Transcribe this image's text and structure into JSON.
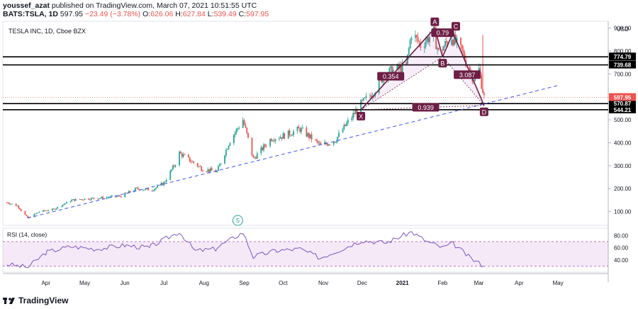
{
  "header": {
    "user": "youssef_azat",
    "published": "published on TradingView.com, March 07, 2021 10:51:55 UTC",
    "symbol": "BATS:TSLA, 1D",
    "last": "597.95",
    "change": "−23.49 (−3.78%)",
    "o_label": "O:",
    "o_value": "626.06",
    "h_label": "H:",
    "h_value": "627.84",
    "l_label": "L:",
    "l_value": "539.49",
    "c_label": "C:",
    "c_value": "597.95"
  },
  "footer": {
    "brand": "TradingView"
  },
  "chart_data": {
    "type": "candlestick",
    "title": "TESLA INC, 1D, Cboe BZX",
    "currency": "USD",
    "ylim": [
      40,
      930
    ],
    "y_ticks": [
      "100.00",
      "200.00",
      "300.00",
      "400.00",
      "500.00",
      "600.00",
      "700.00",
      "800.00",
      "900.00"
    ],
    "x_ticks": [
      "Apr",
      "May",
      "Jun",
      "Jul",
      "Aug",
      "Sep",
      "Oct",
      "Nov",
      "Dec",
      "2021",
      "Feb",
      "Mar",
      "Apr",
      "May"
    ],
    "close_path": [
      [
        "2020-03-02",
        140
      ],
      [
        "2020-03-10",
        125
      ],
      [
        "2020-03-18",
        72
      ],
      [
        "2020-03-27",
        100
      ],
      [
        "2020-04-07",
        110
      ],
      [
        "2020-04-21",
        150
      ],
      [
        "2020-04-30",
        155
      ],
      [
        "2020-05-14",
        160
      ],
      [
        "2020-05-29",
        168
      ],
      [
        "2020-06-10",
        200
      ],
      [
        "2020-06-22",
        195
      ],
      [
        "2020-07-01",
        225
      ],
      [
        "2020-07-10",
        310
      ],
      [
        "2020-07-13",
        355
      ],
      [
        "2020-07-22",
        320
      ],
      [
        "2020-07-31",
        285
      ],
      [
        "2020-08-11",
        275
      ],
      [
        "2020-08-21",
        410
      ],
      [
        "2020-08-31",
        500
      ],
      [
        "2020-09-08",
        330
      ],
      [
        "2020-09-22",
        420
      ],
      [
        "2020-10-01",
        430
      ],
      [
        "2020-10-14",
        460
      ],
      [
        "2020-10-30",
        388
      ],
      [
        "2020-11-10",
        410
      ],
      [
        "2020-11-20",
        490
      ],
      [
        "2020-11-30",
        567
      ],
      [
        "2020-12-10",
        625
      ],
      [
        "2020-12-18",
        700
      ],
      [
        "2021-01-04",
        735
      ],
      [
        "2021-01-08",
        880
      ],
      [
        "2021-01-15",
        826
      ],
      [
        "2021-01-25",
        880
      ],
      [
        "2021-01-29",
        793
      ],
      [
        "2021-02-08",
        863
      ],
      [
        "2021-02-16",
        796
      ],
      [
        "2021-02-23",
        698
      ],
      [
        "2021-02-25",
        682
      ],
      [
        "2021-03-01",
        718
      ],
      [
        "2021-03-05",
        597.95
      ]
    ],
    "levels": [
      {
        "label": "774.79",
        "value": 774.79
      },
      {
        "label": "739.68",
        "value": 739.68
      },
      {
        "label": "570.87",
        "value": 570.87
      },
      {
        "label": "544.21",
        "value": 544.21
      }
    ],
    "last_price": {
      "label": "597.95",
      "value": 597.95
    },
    "pattern_points": [
      {
        "label": "X",
        "date": "2020-11-30",
        "value": 544
      },
      {
        "label": "A",
        "date": "2021-01-26",
        "value": 900
      },
      {
        "label": "B",
        "date": "2021-02-01",
        "value": 775
      },
      {
        "label": "C",
        "date": "2021-02-09",
        "value": 880
      },
      {
        "label": "D",
        "date": "2021-03-05",
        "value": 563
      }
    ],
    "ratios": [
      {
        "label": "0.354",
        "date": "2020-12-23",
        "value": 690
      },
      {
        "label": "0.79",
        "date": "2021-02-01",
        "value": 880
      },
      {
        "label": "3.087",
        "date": "2021-02-20",
        "value": 697
      },
      {
        "label": "0.939",
        "date": "2021-01-19",
        "value": 555
      }
    ],
    "trendline": {
      "start": [
        "2020-03-18",
        72
      ],
      "end": [
        "2021-05-01",
        650
      ]
    },
    "rsi": {
      "label": "RSI (14, close)",
      "ylim": [
        20,
        92
      ],
      "ticks": [
        "40.00",
        "60.00",
        "80.00"
      ],
      "band": [
        30,
        70
      ],
      "values": [
        [
          "2020-03-02",
          33
        ],
        [
          "2020-03-18",
          28
        ],
        [
          "2020-04-01",
          52
        ],
        [
          "2020-04-20",
          62
        ],
        [
          "2020-05-10",
          58
        ],
        [
          "2020-06-01",
          64
        ],
        [
          "2020-06-20",
          60
        ],
        [
          "2020-07-13",
          86
        ],
        [
          "2020-07-25",
          55
        ],
        [
          "2020-08-10",
          58
        ],
        [
          "2020-08-31",
          85
        ],
        [
          "2020-09-08",
          45
        ],
        [
          "2020-09-25",
          55
        ],
        [
          "2020-10-14",
          58
        ],
        [
          "2020-10-30",
          43
        ],
        [
          "2020-11-20",
          62
        ],
        [
          "2020-12-01",
          72
        ],
        [
          "2020-12-20",
          68
        ],
        [
          "2021-01-08",
          86
        ],
        [
          "2021-01-20",
          70
        ],
        [
          "2021-02-01",
          60
        ],
        [
          "2021-02-09",
          67
        ],
        [
          "2021-02-23",
          42
        ],
        [
          "2021-03-01",
          35
        ],
        [
          "2021-03-05",
          30
        ]
      ]
    },
    "marker": {
      "label": "S",
      "date": "2020-08-27"
    }
  }
}
